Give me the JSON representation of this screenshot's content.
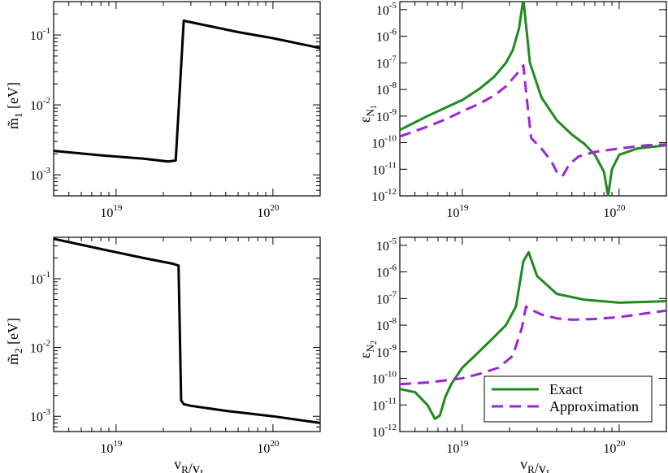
{
  "figure": {
    "x_axis_label": "v_R/v_L"
  },
  "chart_data": [
    {
      "id": "m1",
      "type": "line",
      "xscale": "log",
      "yscale": "log",
      "xlim": [
        4e+18,
        2e+20
      ],
      "ylim": [
        0.0005,
        0.3
      ],
      "ylabel": "m̃_1 [eV]",
      "xlabel": "",
      "x_ticks": [
        {
          "value": 1e+19,
          "base": "10",
          "exp": "19"
        },
        {
          "value": 1e+20,
          "base": "10",
          "exp": "20"
        }
      ],
      "y_ticks": [
        {
          "value": 0.001,
          "base": "10",
          "exp": "-3"
        },
        {
          "value": 0.01,
          "base": "10",
          "exp": "-2"
        },
        {
          "value": 0.1,
          "base": "10",
          "exp": "-1"
        }
      ],
      "series": [
        {
          "name": "m1",
          "color": "#000000",
          "dash": "solid",
          "x": [
            4e+18,
            8e+18,
            1.5e+19,
            2.15e+19,
            2.4e+19,
            2.5e+19,
            2.7e+19,
            6e+19,
            1e+20,
            2e+20
          ],
          "y": [
            0.0022,
            0.0019,
            0.0017,
            0.00155,
            0.0016,
            0.008,
            0.16,
            0.11,
            0.09,
            0.065
          ]
        }
      ]
    },
    {
      "id": "eps1",
      "type": "line",
      "xscale": "log",
      "yscale": "log",
      "xlim": [
        4e+18,
        2e+20
      ],
      "ylim": [
        1e-12,
        2e-05
      ],
      "ylabel": "ε_N1",
      "xlabel": "",
      "x_ticks": [
        {
          "value": 1e+19,
          "base": "10",
          "exp": "19"
        },
        {
          "value": 1e+20,
          "base": "10",
          "exp": "20"
        }
      ],
      "y_ticks": [
        {
          "value": 1e-12,
          "base": "10",
          "exp": "-12"
        },
        {
          "value": 1e-11,
          "base": "10",
          "exp": "-11"
        },
        {
          "value": 1e-10,
          "base": "10",
          "exp": "-10"
        },
        {
          "value": 1e-09,
          "base": "10",
          "exp": "-9"
        },
        {
          "value": 1e-08,
          "base": "10",
          "exp": "-8"
        },
        {
          "value": 1e-07,
          "base": "10",
          "exp": "-7"
        },
        {
          "value": 1e-06,
          "base": "10",
          "exp": "-6"
        },
        {
          "value": 1e-05,
          "base": "10",
          "exp": "-5"
        }
      ],
      "series": [
        {
          "name": "Exact",
          "color": "#1f8a1f",
          "dash": "solid",
          "x": [
            4e+18,
            6e+18,
            8e+18,
            1e+19,
            1.3e+19,
            1.6e+19,
            1.9e+19,
            2.1e+19,
            2.3e+19,
            2.45e+19,
            2.7e+19,
            3.2e+19,
            4e+19,
            5e+19,
            6e+19,
            7e+19,
            8e+19,
            8.5e+19,
            9e+19,
            1e+20,
            1.3e+20,
            2e+20
          ],
          "y": [
            3e-10,
            1e-09,
            2.2e-09,
            4e-09,
            1.1e-08,
            3e-08,
            1e-07,
            3e-07,
            2e-06,
            2.5e-05,
            1e-07,
            5e-09,
            7e-10,
            2e-10,
            9e-11,
            3.5e-11,
            8e-12,
            1e-12,
            1e-11,
            3.5e-11,
            6e-11,
            8e-11
          ]
        },
        {
          "name": "Approximation",
          "color": "#9b26d6",
          "dash": "dashed",
          "x": [
            4e+18,
            6e+18,
            8e+18,
            1e+19,
            1.3e+19,
            1.6e+19,
            1.9e+19,
            2.2e+19,
            2.45e+19,
            2.6e+19,
            2.75e+19,
            3.2e+19,
            3.7e+19,
            4.1e+19,
            4.4e+19,
            4.8e+19,
            5.5e+19,
            7e+19,
            1e+20,
            1.5e+20,
            2e+20
          ],
          "y": [
            1.7e-10,
            4e-10,
            8e-10,
            1.5e-09,
            3e-09,
            6e-09,
            1.3e-08,
            3.5e-08,
            8e-08,
            3e-09,
            1.5e-10,
            6e-11,
            2e-11,
            6e-12,
            6e-12,
            1.5e-11,
            3e-11,
            4.5e-11,
            6e-11,
            8e-11,
            8.5e-11
          ]
        }
      ]
    },
    {
      "id": "m2",
      "type": "line",
      "xscale": "log",
      "yscale": "log",
      "xlim": [
        4e+18,
        2e+20
      ],
      "ylim": [
        0.0006,
        0.4
      ],
      "ylabel": "m̃_2 [eV]",
      "xlabel": "v_R/v_L",
      "x_ticks": [
        {
          "value": 1e+19,
          "base": "10",
          "exp": "19"
        },
        {
          "value": 1e+20,
          "base": "10",
          "exp": "20"
        }
      ],
      "y_ticks": [
        {
          "value": 0.001,
          "base": "10",
          "exp": "-3"
        },
        {
          "value": 0.01,
          "base": "10",
          "exp": "-2"
        },
        {
          "value": 0.1,
          "base": "10",
          "exp": "-1"
        }
      ],
      "series": [
        {
          "name": "m2",
          "color": "#000000",
          "dash": "solid",
          "x": [
            4e+18,
            8e+18,
            1.5e+19,
            2.3e+19,
            2.5e+19,
            2.6e+19,
            2.7e+19,
            3e+19,
            5e+19,
            1e+20,
            2e+20
          ],
          "y": [
            0.38,
            0.27,
            0.2,
            0.165,
            0.155,
            0.0017,
            0.0015,
            0.00142,
            0.0012,
            0.001,
            0.0008
          ]
        }
      ]
    },
    {
      "id": "eps2",
      "type": "line",
      "xscale": "log",
      "yscale": "log",
      "xlim": [
        4e+18,
        2e+20
      ],
      "ylim": [
        1e-12,
        2e-05
      ],
      "ylabel": "ε_N2",
      "xlabel": "v_R/v_L",
      "x_ticks": [
        {
          "value": 1e+19,
          "base": "10",
          "exp": "19"
        },
        {
          "value": 1e+20,
          "base": "10",
          "exp": "20"
        }
      ],
      "y_ticks": [
        {
          "value": 1e-12,
          "base": "10",
          "exp": "-12"
        },
        {
          "value": 1e-11,
          "base": "10",
          "exp": "-11"
        },
        {
          "value": 1e-10,
          "base": "10",
          "exp": "-10"
        },
        {
          "value": 1e-09,
          "base": "10",
          "exp": "-9"
        },
        {
          "value": 1e-08,
          "base": "10",
          "exp": "-8"
        },
        {
          "value": 1e-07,
          "base": "10",
          "exp": "-7"
        },
        {
          "value": 1e-06,
          "base": "10",
          "exp": "-6"
        },
        {
          "value": 1e-05,
          "base": "10",
          "exp": "-5"
        }
      ],
      "legend": {
        "placement": "bottom-right",
        "entries": [
          "Exact",
          "Approximation"
        ]
      },
      "series": [
        {
          "name": "Exact",
          "color": "#1f8a1f",
          "dash": "solid",
          "x": [
            4e+18,
            5e+18,
            6e+18,
            6.7e+18,
            7.2e+18,
            7.8e+18,
            8.5e+18,
            1e+19,
            1.2e+19,
            1.5e+19,
            1.9e+19,
            2.2e+19,
            2.45e+19,
            2.65e+19,
            3e+19,
            4e+19,
            6e+19,
            1e+20,
            1.5e+20,
            2e+20
          ],
          "y": [
            4e-11,
            3e-11,
            1e-11,
            3e-12,
            4e-12,
            2e-11,
            6e-11,
            2.5e-10,
            7e-10,
            2.5e-09,
            1e-08,
            5e-08,
            2.5e-06,
            5.5e-06,
            7e-07,
            1.5e-07,
            9e-08,
            7e-08,
            7.5e-08,
            8e-08
          ]
        },
        {
          "name": "Approximation",
          "color": "#9b26d6",
          "dash": "dashed",
          "x": [
            4e+18,
            6e+18,
            8e+18,
            1e+19,
            1.3e+19,
            1.7e+19,
            2.1e+19,
            2.4e+19,
            2.55e+19,
            2.7e+19,
            3.2e+19,
            4e+19,
            5e+19,
            7e+19,
            1e+20,
            1.5e+20,
            2e+20
          ],
          "y": [
            6e-11,
            7e-11,
            8.5e-11,
            1e-10,
            1.5e-10,
            2.5e-10,
            7e-10,
            8e-09,
            5e-08,
            4e-08,
            2.5e-08,
            1.8e-08,
            1.6e-08,
            1.7e-08,
            2e-08,
            2.8e-08,
            3.5e-08
          ]
        }
      ]
    }
  ]
}
